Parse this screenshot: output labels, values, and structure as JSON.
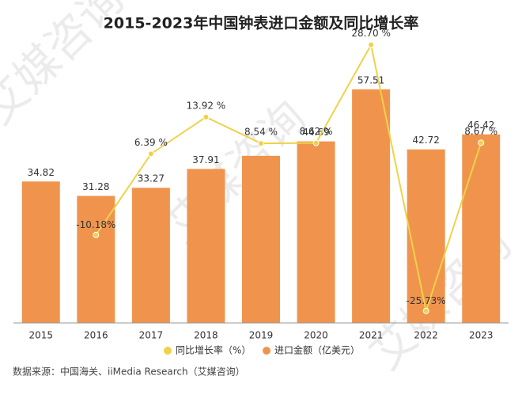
{
  "chart_data": {
    "type": "bar-line",
    "title": "2015-2023年中国钟表进口金额及同比增长率",
    "source": "数据来源：中国海关、iiMedia Research（艾媒咨询）",
    "watermark": "艾媒咨询",
    "categories": [
      "2015",
      "2016",
      "2017",
      "2018",
      "2019",
      "2020",
      "2021",
      "2022",
      "2023"
    ],
    "ylim": [
      0,
      71.7
    ],
    "y2lim": [
      -28.2,
      31.4
    ],
    "series": [
      {
        "name": "进口金额（亿美元）",
        "type": "bar",
        "color": "#f0944d",
        "values": [
          34.82,
          31.28,
          33.27,
          37.91,
          41.14,
          44.69,
          57.51,
          42.72,
          46.42
        ],
        "value_labels": [
          "34.82",
          "31.28",
          "33.27",
          "37.91",
          null,
          "44.69",
          "57.51",
          "42.72",
          "46.42"
        ]
      },
      {
        "name": "同比增长率（%）",
        "type": "line",
        "axis": "y2",
        "color": "#efd24a",
        "values": [
          null,
          -10.18,
          6.39,
          13.92,
          8.54,
          8.62,
          28.7,
          -25.73,
          8.67
        ],
        "value_labels": [
          null,
          "-10.18%",
          "6.39 %",
          "13.92 %",
          "8.54 %",
          "8.62 %",
          "28.70 %",
          "-25.73%",
          "8.67 %"
        ]
      }
    ]
  }
}
